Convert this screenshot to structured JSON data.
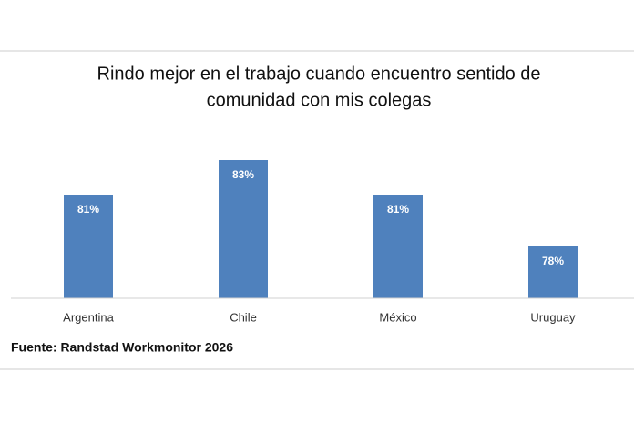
{
  "chart_data": {
    "type": "bar",
    "title_lines": [
      "Rindo mejor en el trabajo cuando encuentro sentido de",
      "comunidad con mis colegas"
    ],
    "categories": [
      "Argentina",
      "Chile",
      "México",
      "Uruguay"
    ],
    "values": [
      81,
      83,
      81,
      78
    ],
    "value_labels": [
      "81%",
      "83%",
      "81%",
      "78%"
    ],
    "color": "#4f81bd",
    "ylim": [
      75,
      85
    ],
    "source": "Fuente: Randstad Workmonitor 2026"
  }
}
